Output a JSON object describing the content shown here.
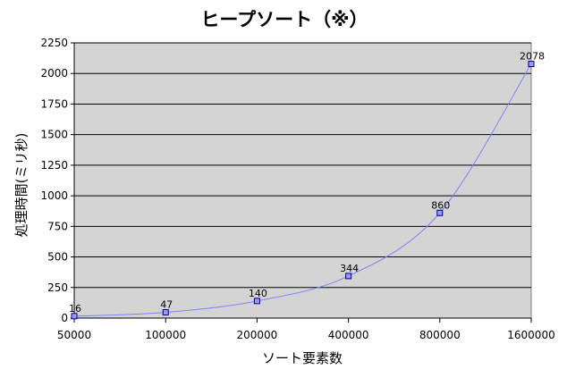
{
  "chart_data": {
    "type": "line",
    "title": "ヒープソート（※）",
    "xlabel": "ソート要素数",
    "ylabel": "処理時間(ミリ秒)",
    "categories": [
      "50000",
      "100000",
      "200000",
      "400000",
      "800000",
      "1600000"
    ],
    "series": [
      {
        "values": [
          16,
          47,
          140,
          344,
          860,
          2078
        ]
      }
    ],
    "data_labels": [
      "16",
      "47",
      "140",
      "344",
      "860",
      "2078"
    ],
    "ylim": [
      0,
      2250
    ],
    "yticks": [
      "0",
      "250",
      "500",
      "750",
      "1000",
      "1250",
      "1500",
      "1750",
      "2000",
      "2250"
    ],
    "grid": true,
    "legend": "none",
    "colors": {
      "plot_background": "#d4d4d4",
      "line": "#8080ff",
      "marker_fill": "#9999ff",
      "marker_edge": "#000080"
    }
  }
}
